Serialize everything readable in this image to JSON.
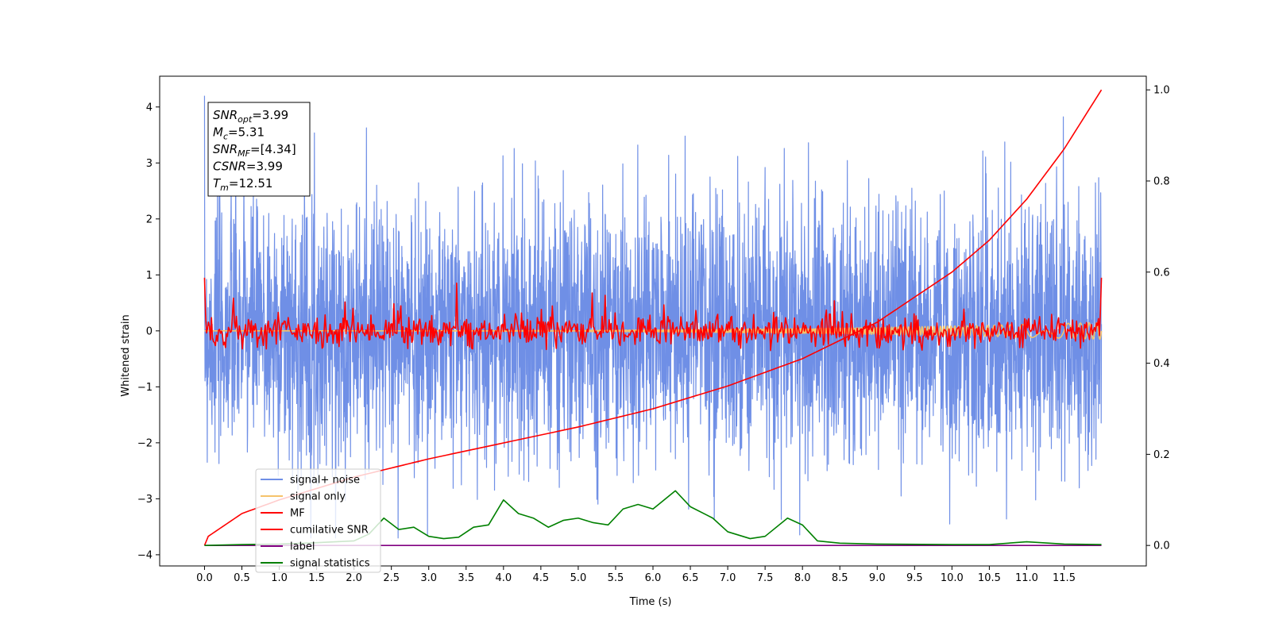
{
  "chart_data": {
    "type": "line",
    "xlabel": "Time (s)",
    "ylabel": "Whitened strain",
    "xlim": [
      -0.6,
      12.6
    ],
    "ylim": [
      -4.2,
      4.55
    ],
    "y2lim": [
      -0.045,
      1.03
    ],
    "x_ticks": [
      "0.0",
      "0.5",
      "1.0",
      "1.5",
      "2.0",
      "2.5",
      "3.0",
      "3.5",
      "4.0",
      "4.5",
      "5.0",
      "5.5",
      "6.0",
      "6.5",
      "7.0",
      "7.5",
      "8.0",
      "8.5",
      "9.0",
      "9.5",
      "10.0",
      "10.5",
      "11.0",
      "11.5"
    ],
    "y_ticks": [
      "4",
      "3",
      "2",
      "1",
      "0",
      "−1",
      "−2",
      "−3",
      "−4"
    ],
    "y2_ticks": [
      "1.0",
      "0.8",
      "0.6",
      "0.4",
      "0.2",
      "0.0"
    ],
    "grid": false,
    "legend_placement": "lower-left",
    "info_box": [
      {
        "base": "SNR",
        "sub": "opt",
        "text": "=3.99"
      },
      {
        "base": "M",
        "sub": "c",
        "text": "=5.31"
      },
      {
        "base": "SNR",
        "sub": "MF",
        "text": "=[4.34]"
      },
      {
        "base": "CSNR",
        "sub": "",
        "text": "=3.99"
      },
      {
        "base": "T",
        "sub": "m",
        "text": "=12.51"
      }
    ],
    "series": [
      {
        "name": "signal+ noise",
        "color": "#6f8fe6",
        "axis": "left",
        "kind": "noise",
        "x_range": [
          0,
          12
        ],
        "amplitude_range": [
          -3.7,
          4.2
        ]
      },
      {
        "name": "signal only",
        "color": "#f5c36b",
        "axis": "left",
        "kind": "chirp",
        "x_range": [
          0,
          12
        ],
        "amplitude_range": [
          -0.15,
          0.15
        ]
      },
      {
        "name": "MF",
        "color": "#ff0000",
        "axis": "left",
        "kind": "noise",
        "x_range": [
          0,
          12
        ],
        "amplitude_range": [
          -0.35,
          0.95
        ]
      },
      {
        "name": "cumilative SNR",
        "color": "#ff0000",
        "axis": "right",
        "kind": "curve",
        "x": [
          0,
          0.05,
          0.5,
          1,
          2,
          3,
          4,
          5,
          6,
          7,
          8,
          9,
          10,
          10.5,
          11,
          11.5,
          12
        ],
        "y": [
          0,
          0.02,
          0.07,
          0.1,
          0.15,
          0.19,
          0.225,
          0.26,
          0.3,
          0.35,
          0.41,
          0.49,
          0.6,
          0.67,
          0.76,
          0.87,
          1.0
        ]
      },
      {
        "name": "label",
        "color": "#800080",
        "axis": "right",
        "kind": "curve",
        "x": [
          0,
          12
        ],
        "y": [
          0,
          0
        ]
      },
      {
        "name": "signal statistics",
        "color": "#008000",
        "axis": "right",
        "kind": "curve",
        "x": [
          0,
          0.5,
          1,
          1.5,
          2.0,
          2.2,
          2.4,
          2.6,
          2.8,
          3.0,
          3.2,
          3.4,
          3.6,
          3.8,
          4.0,
          4.2,
          4.4,
          4.6,
          4.8,
          5.0,
          5.2,
          5.4,
          5.6,
          5.8,
          6.0,
          6.3,
          6.5,
          6.8,
          7.0,
          7.3,
          7.5,
          7.8,
          8.0,
          8.2,
          8.5,
          9.0,
          10.0,
          10.5,
          11.0,
          11.5,
          12.0
        ],
        "y": [
          0.0,
          0.002,
          0.003,
          0.006,
          0.01,
          0.025,
          0.06,
          0.035,
          0.04,
          0.02,
          0.015,
          0.018,
          0.04,
          0.045,
          0.1,
          0.07,
          0.06,
          0.04,
          0.055,
          0.06,
          0.05,
          0.045,
          0.08,
          0.09,
          0.08,
          0.12,
          0.085,
          0.06,
          0.03,
          0.015,
          0.02,
          0.06,
          0.045,
          0.01,
          0.005,
          0.003,
          0.002,
          0.002,
          0.008,
          0.003,
          0.002
        ]
      }
    ]
  }
}
